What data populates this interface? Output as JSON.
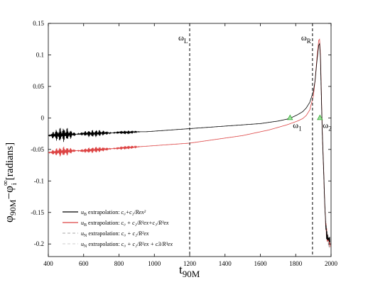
{
  "chart_data": {
    "type": "line",
    "xlabel": {
      "base": "t",
      "sub": "90M"
    },
    "ylabel": {
      "base": "φ",
      "sub": "90M",
      "minus": "−φ",
      "sup2": "∞",
      "sub2": "i",
      "unit": "[radians]"
    },
    "xlim": [
      400,
      2000
    ],
    "ylim": [
      -0.22,
      0.15
    ],
    "xticks": [
      400,
      600,
      800,
      1000,
      1200,
      1400,
      1600,
      1800,
      2000
    ],
    "yticks": [
      -0.2,
      -0.15,
      -0.1,
      -0.05,
      0,
      0.05,
      0.1,
      0.15
    ],
    "xtick_labels": [
      "400",
      "600",
      "800",
      "1000",
      "1200",
      "1400",
      "1600",
      "1800",
      "2000"
    ],
    "ytick_labels": [
      "-0.2",
      "-0.15",
      "-0.1",
      "-0.05",
      "0",
      "0.05",
      "0.1",
      "0.15"
    ],
    "grid": false,
    "legend_position": "bottom-left",
    "vlines": [
      {
        "x": 1200,
        "label": "ω",
        "sub": "L"
      },
      {
        "x": 1895,
        "label": "ω",
        "sub": "R"
      }
    ],
    "markers": [
      {
        "x": 1768,
        "y": 0.0,
        "label": "ω",
        "sub": "1",
        "color": "#33aa33"
      },
      {
        "x": 1937,
        "y": 0.0,
        "label": "ω",
        "sub": "2",
        "color": "#33aa33"
      }
    ],
    "series": [
      {
        "legend_prefix": "u",
        "legend_prefix_sub": "B",
        "legend_suffix": " extrapolation: ",
        "formula": "c₀+c₂/Rex²",
        "color": "#000000",
        "dash": "none",
        "x": [
          400,
          450,
          500,
          550,
          600,
          650,
          700,
          750,
          800,
          850,
          900,
          950,
          1000,
          1050,
          1100,
          1150,
          1200,
          1250,
          1300,
          1350,
          1400,
          1450,
          1500,
          1550,
          1600,
          1650,
          1700,
          1750,
          1780,
          1810,
          1840,
          1860,
          1880,
          1900,
          1910,
          1920,
          1930,
          1935,
          1940,
          1945,
          1950,
          1955,
          1960,
          1965,
          1970,
          1975,
          1980,
          1985,
          1990,
          1995
        ],
        "y": [
          -0.028,
          -0.027,
          -0.026,
          -0.026,
          -0.025,
          -0.025,
          -0.024,
          -0.024,
          -0.023,
          -0.023,
          -0.022,
          -0.022,
          -0.021,
          -0.02,
          -0.019,
          -0.018,
          -0.017,
          -0.016,
          -0.015,
          -0.014,
          -0.013,
          -0.012,
          -0.011,
          -0.01,
          -0.009,
          -0.007,
          -0.005,
          -0.002,
          0.001,
          0.005,
          0.01,
          0.016,
          0.025,
          0.042,
          0.06,
          0.09,
          0.115,
          0.118,
          0.095,
          0.035,
          -0.02,
          -0.06,
          -0.1,
          -0.14,
          -0.17,
          -0.185,
          -0.19,
          -0.192,
          -0.193,
          -0.195
        ],
        "wiggle": [
          [
            400,
            560,
            0.012
          ],
          [
            560,
            760,
            0.006
          ],
          [
            760,
            920,
            0.003
          ],
          [
            1960,
            2000,
            0.01
          ]
        ]
      },
      {
        "legend_prefix": "u",
        "legend_prefix_sub": "B",
        "legend_suffix": " extrapolation: ",
        "formula": "c₀ + c₂/R²ex+c₃/R³ex",
        "color": "#dd4444",
        "dash": "none",
        "x": [
          400,
          450,
          500,
          550,
          600,
          650,
          700,
          750,
          800,
          850,
          900,
          950,
          1000,
          1050,
          1100,
          1150,
          1200,
          1250,
          1300,
          1350,
          1400,
          1450,
          1500,
          1550,
          1600,
          1650,
          1700,
          1750,
          1780,
          1810,
          1840,
          1860,
          1880,
          1900,
          1910,
          1920,
          1930,
          1935,
          1940,
          1945,
          1950,
          1955,
          1960,
          1965,
          1970,
          1975,
          1980,
          1985,
          1990,
          1995
        ],
        "y": [
          -0.055,
          -0.054,
          -0.053,
          -0.052,
          -0.052,
          -0.051,
          -0.05,
          -0.049,
          -0.048,
          -0.047,
          -0.046,
          -0.045,
          -0.044,
          -0.043,
          -0.042,
          -0.041,
          -0.04,
          -0.038,
          -0.036,
          -0.034,
          -0.032,
          -0.03,
          -0.028,
          -0.025,
          -0.022,
          -0.019,
          -0.015,
          -0.011,
          -0.008,
          -0.005,
          -0.001,
          0.004,
          0.013,
          0.035,
          0.06,
          0.095,
          0.123,
          0.125,
          0.1,
          0.04,
          -0.02,
          -0.06,
          -0.1,
          -0.14,
          -0.17,
          -0.185,
          -0.19,
          -0.193,
          -0.196,
          -0.2
        ],
        "wiggle": [
          [
            400,
            560,
            0.008
          ],
          [
            560,
            760,
            0.005
          ],
          [
            760,
            920,
            0.003
          ],
          [
            1960,
            2000,
            0.012
          ]
        ]
      },
      {
        "legend_prefix": "u",
        "legend_prefix_sub": "N",
        "legend_suffix": " extrapolation: ",
        "formula": "c₀ + c₂/R²ex",
        "color": "#bbbbbb",
        "dash": "4,3",
        "x": [
          1940,
          1950,
          1960,
          1970,
          1980,
          1990,
          1995
        ],
        "y": [
          0.08,
          -0.03,
          -0.11,
          -0.17,
          -0.19,
          -0.2,
          -0.205
        ],
        "wiggle": [
          [
            1960,
            2000,
            0.01
          ]
        ]
      },
      {
        "legend_prefix": "u",
        "legend_prefix_sub": "N",
        "legend_suffix": " extrapolation: ",
        "formula": "c₀ + c₂/R²ex + c3/R³ex",
        "color": "#d8d8d8",
        "dash": "4,3",
        "x": [
          1940,
          1950,
          1960,
          1970,
          1980,
          1990,
          1995
        ],
        "y": [
          0.085,
          -0.025,
          -0.105,
          -0.165,
          -0.188,
          -0.202,
          -0.208
        ],
        "wiggle": [
          [
            1960,
            2000,
            0.012
          ]
        ]
      }
    ]
  }
}
